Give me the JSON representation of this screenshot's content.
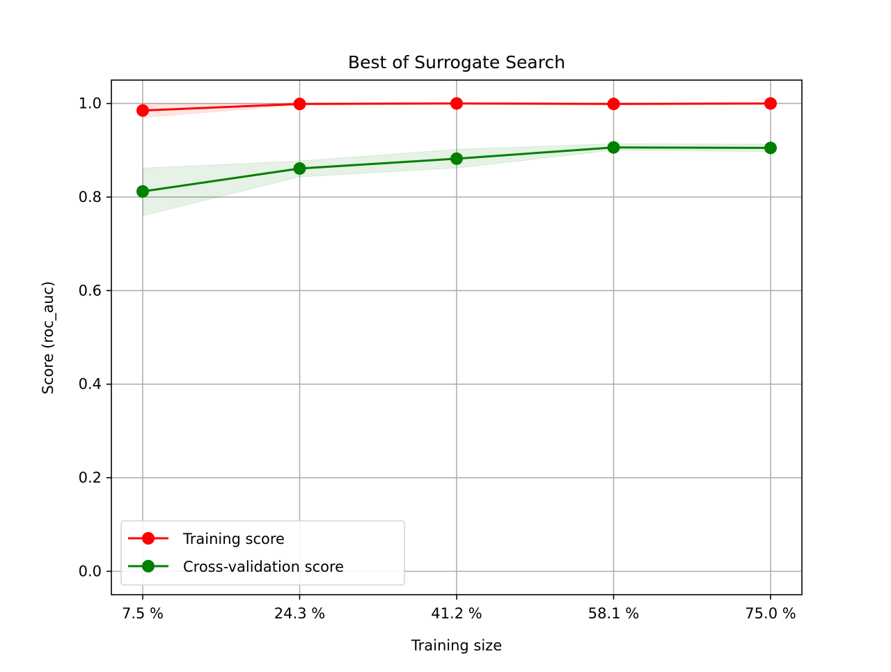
{
  "chart_data": {
    "type": "line",
    "title": "Best of Surrogate Search",
    "xlabel": "Training size",
    "ylabel": "Score (roc_auc)",
    "categories": [
      "7.5 %",
      "24.3 %",
      "41.2 %",
      "58.1 %",
      "75.0 %"
    ],
    "ylim": [
      -0.05,
      1.05
    ],
    "yticks": [
      "0.0",
      "0.2",
      "0.4",
      "0.6",
      "0.8",
      "1.0"
    ],
    "grid": true,
    "legend_position": "lower-left",
    "series": [
      {
        "name": "Training score",
        "color": "#ff0000",
        "values": [
          0.985,
          0.999,
          1.0,
          0.999,
          1.0
        ],
        "band_lower": [
          0.97,
          0.997,
          0.999,
          0.998,
          0.999
        ],
        "band_upper": [
          1.0,
          1.0,
          1.0,
          1.0,
          1.0
        ]
      },
      {
        "name": "Cross-validation score",
        "color": "#008000",
        "values": [
          0.812,
          0.861,
          0.882,
          0.906,
          0.905
        ],
        "band_lower": [
          0.76,
          0.843,
          0.862,
          0.9,
          0.897
        ],
        "band_upper": [
          0.862,
          0.877,
          0.902,
          0.914,
          0.913
        ]
      }
    ]
  }
}
